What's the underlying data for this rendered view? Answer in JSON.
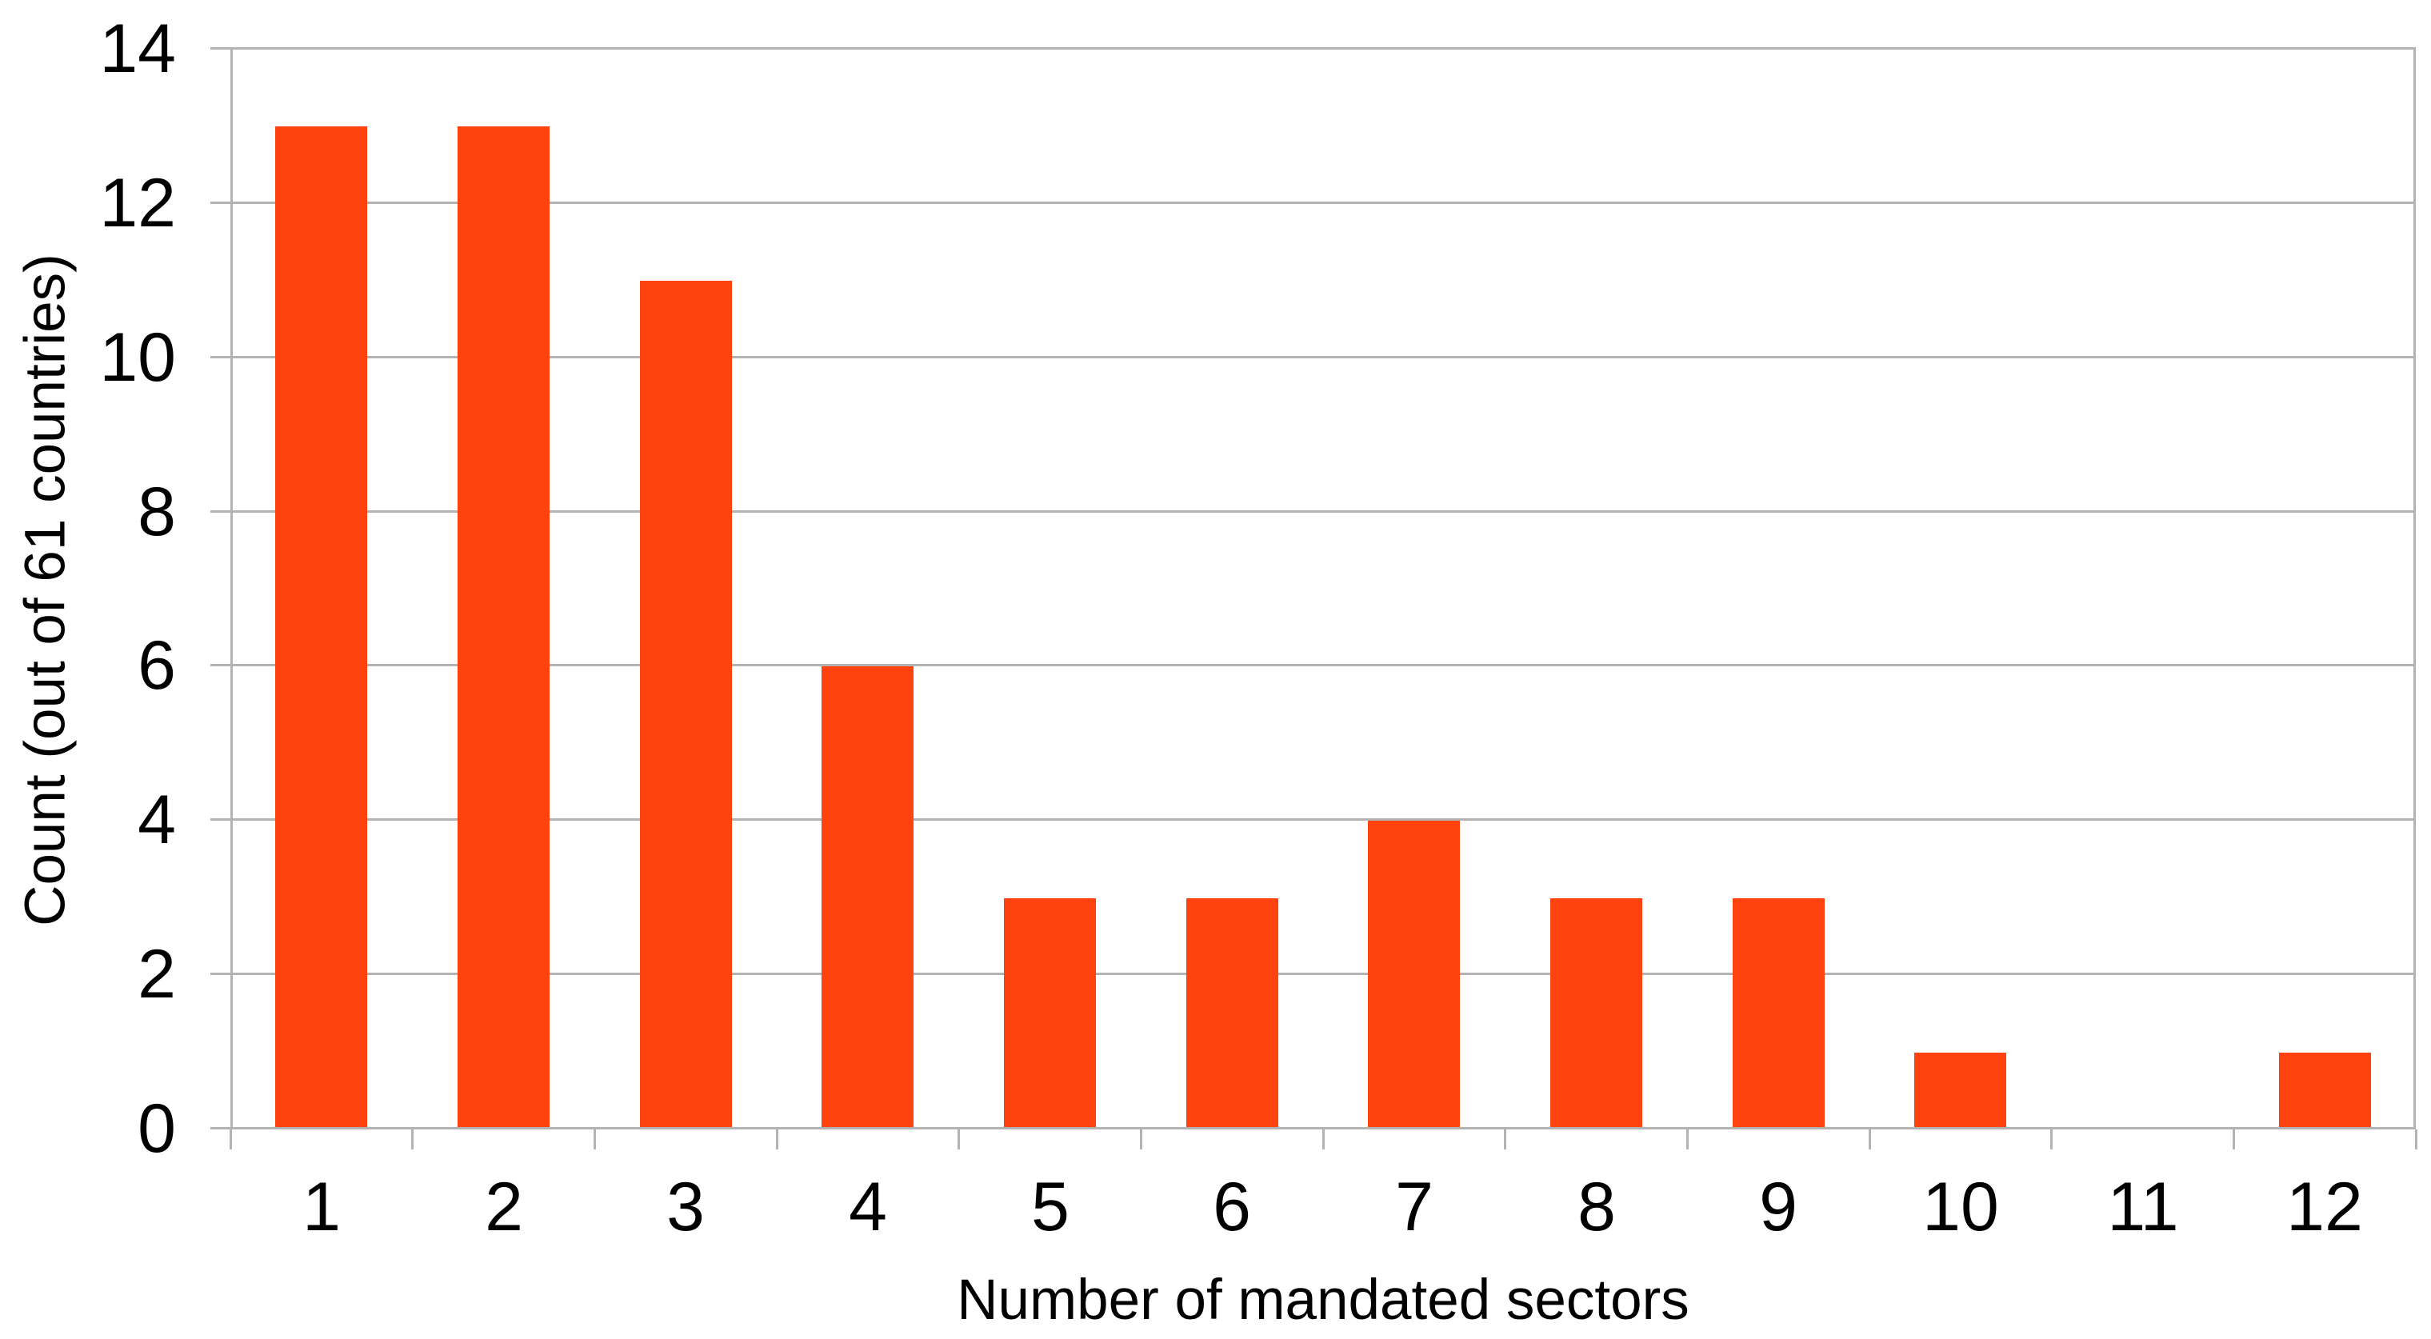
{
  "chart_data": {
    "type": "bar",
    "title": "",
    "categories": [
      "1",
      "2",
      "3",
      "4",
      "5",
      "6",
      "7",
      "8",
      "9",
      "10",
      "11",
      "12"
    ],
    "values": [
      13,
      13,
      11,
      6,
      3,
      3,
      4,
      3,
      3,
      1,
      0,
      1
    ],
    "xlabel": "Number of mandated sectors",
    "ylabel": "Count (out of 61 countries)",
    "ylim": [
      0,
      14
    ],
    "yticks": [
      0,
      2,
      4,
      6,
      8,
      10,
      12,
      14
    ],
    "grid": "horizontal",
    "legend": "none",
    "colors": {
      "bar": "#FF420E",
      "axis": "#B3B3B3",
      "gridline": "#B3B3B3",
      "text": "#000000",
      "background": "#FFFFFF"
    }
  }
}
